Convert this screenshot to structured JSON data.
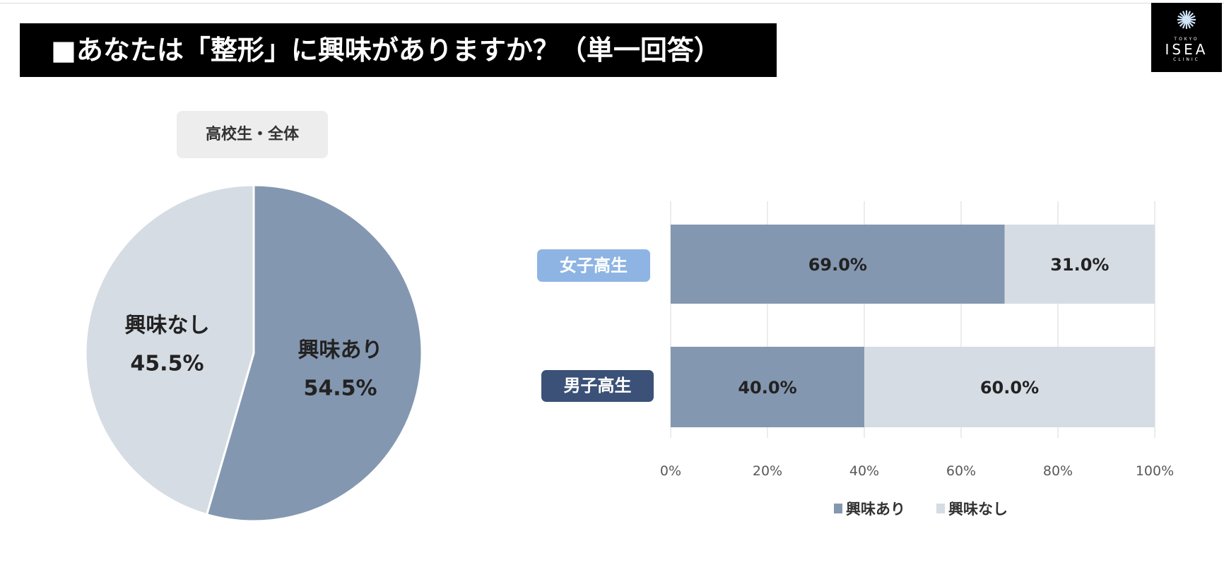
{
  "title": "■あなたは「整形」に興味がありますか？（単一回答）",
  "logo": {
    "top": "TOKYO",
    "main": "ISEA",
    "bottom": "CLINIC"
  },
  "chart_data": [
    {
      "type": "pie",
      "title": "高校生・全体",
      "slices": [
        {
          "label": "興味あり",
          "value": 54.5,
          "display": "54.5%",
          "color": "#8497b0"
        },
        {
          "label": "興味なし",
          "value": 45.5,
          "display": "45.5%",
          "color": "#d6dce4"
        }
      ]
    },
    {
      "type": "bar",
      "orientation": "horizontal",
      "stacked": true,
      "categories": [
        "女子高生",
        "男子高生"
      ],
      "category_colors": [
        "#8eb4e3",
        "#3b5177"
      ],
      "series": [
        {
          "name": "興味あり",
          "values": [
            69.0,
            40.0
          ],
          "labels": [
            "69.0%",
            "40.0%"
          ],
          "color": "#8497b0"
        },
        {
          "name": "興味なし",
          "values": [
            31.0,
            60.0
          ],
          "labels": [
            "31.0%",
            "60.0%"
          ],
          "color": "#d6dce4"
        }
      ],
      "xlim": [
        0,
        100
      ],
      "xticks": [
        "0%",
        "20%",
        "40%",
        "60%",
        "80%",
        "100%"
      ],
      "grid": true,
      "legend": "bottom"
    }
  ]
}
